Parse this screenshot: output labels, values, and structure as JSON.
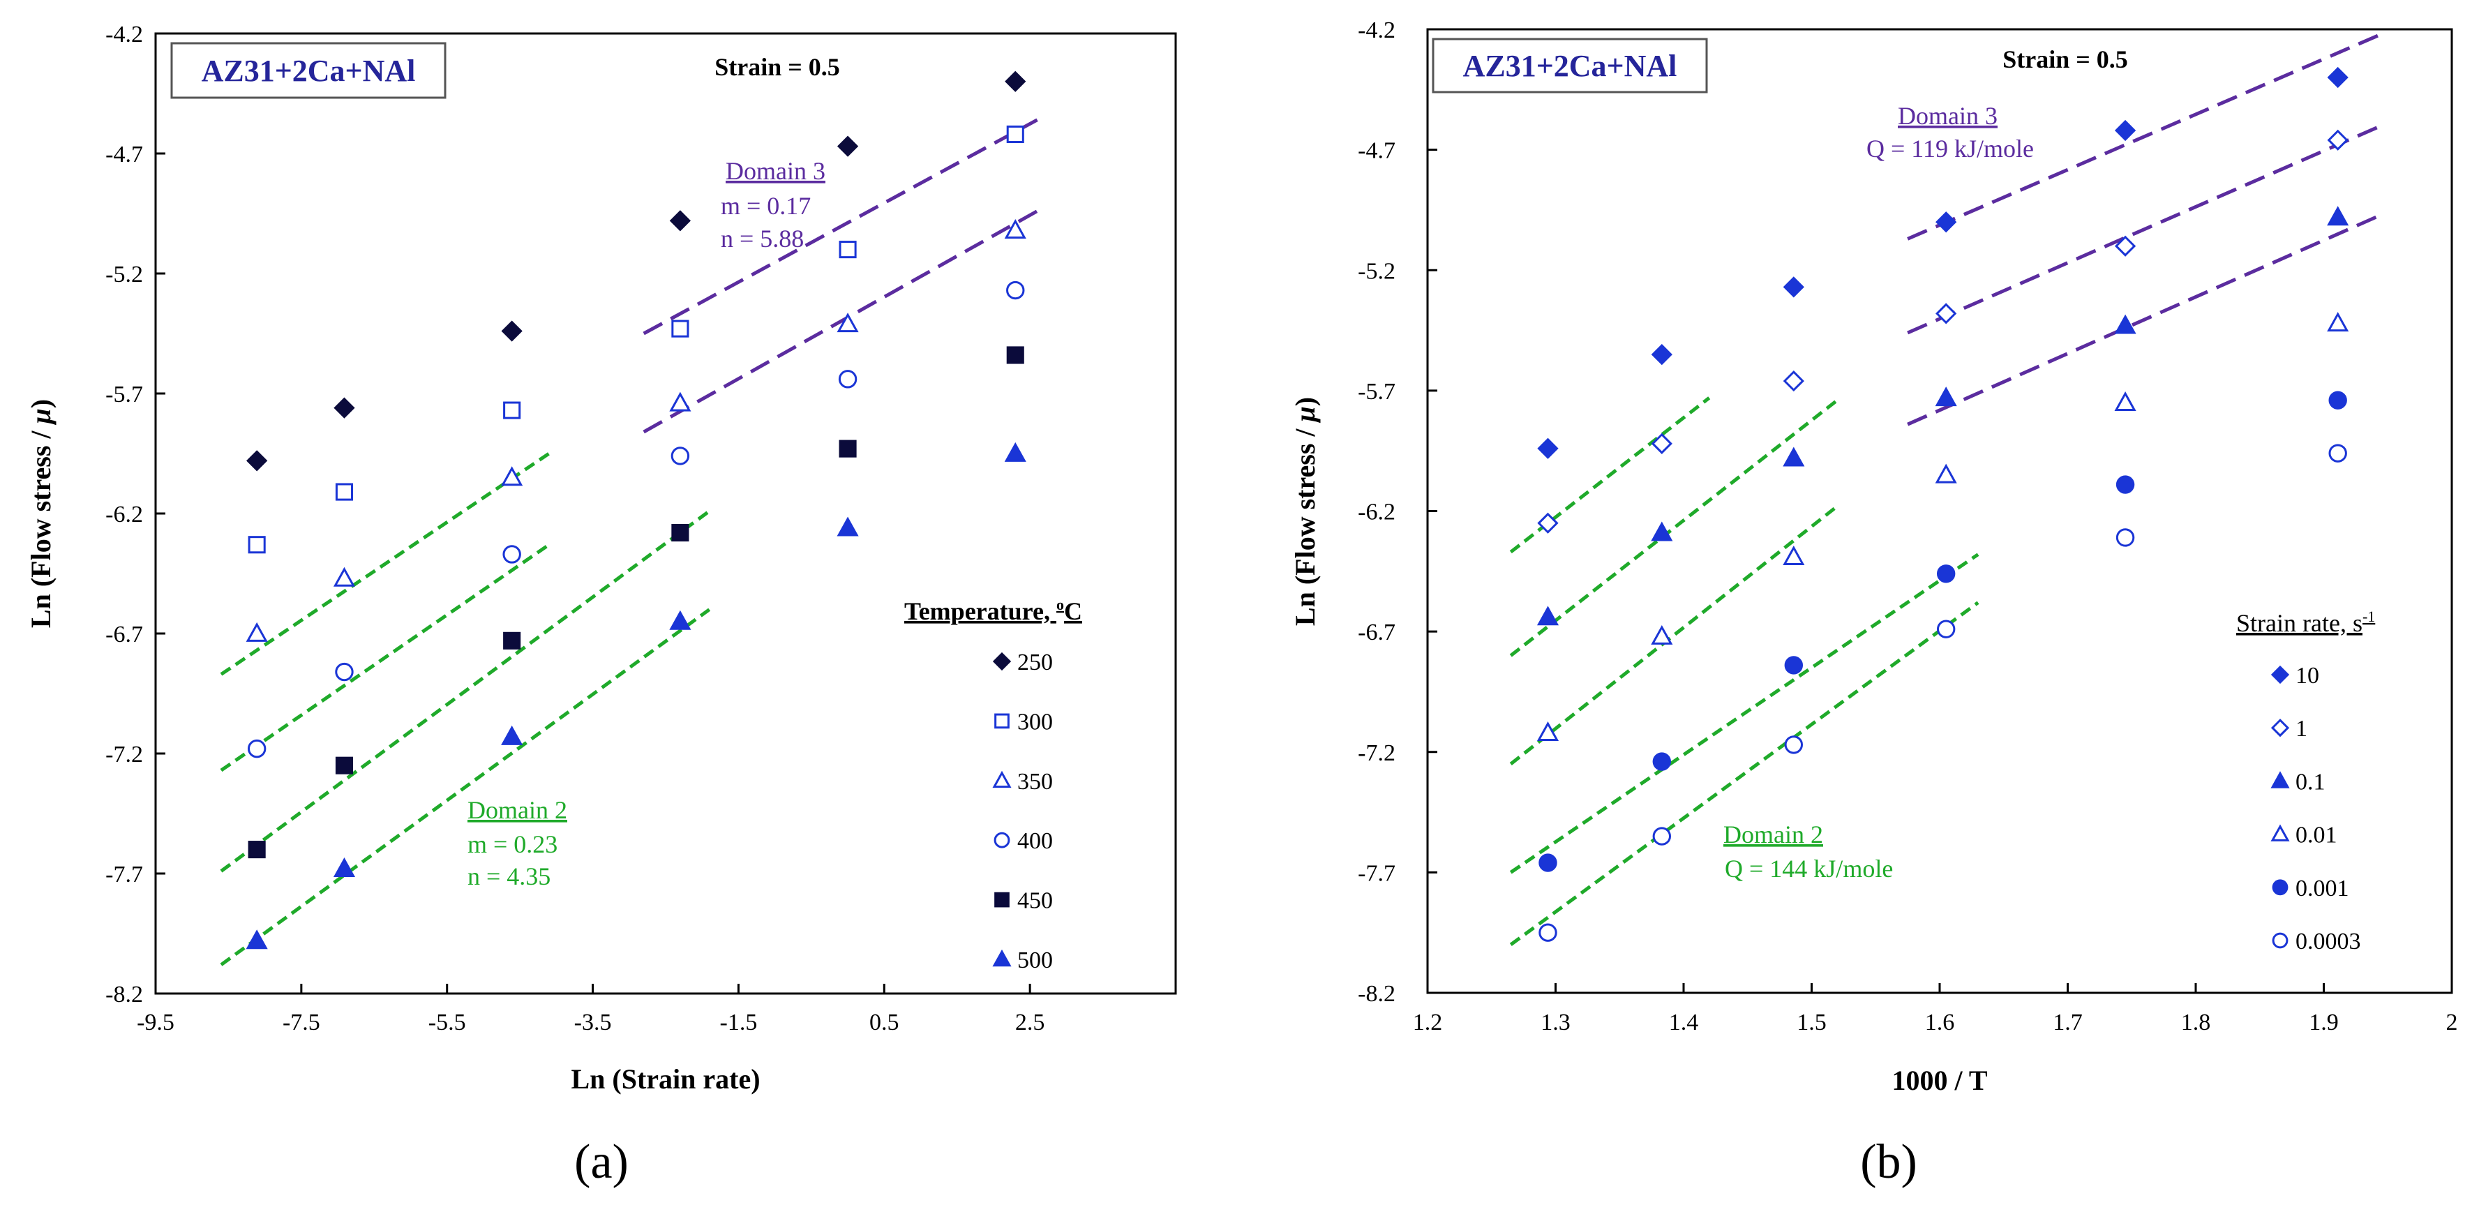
{
  "figure": {
    "panel_labels": [
      "(a)",
      "(b)"
    ]
  },
  "colors": {
    "marker_dark": "#0b0b3b",
    "marker_blue": "#1a35d6",
    "domain3": "#5b2c9f",
    "domain2": "#1faa2a",
    "title_box_text": "#25259a",
    "axis": "#000000"
  },
  "chart_data": [
    {
      "type": "scatter",
      "panel": "(a)",
      "title_box": "AZ31+2Ca+NAl",
      "subtitle": "Strain = 0.5",
      "xlabel": "Ln (Strain rate)",
      "ylabel_main": "Ln (Flow stress / ",
      "ylabel_mu": "μ",
      "ylabel_end": ")",
      "xlim": [
        -9.5,
        4.5
      ],
      "ylim": [
        -8.2,
        -4.2
      ],
      "xticks": [
        "-9.5",
        "-7.5",
        "-5.5",
        "-3.5",
        "-1.5",
        "0.5",
        "2.5"
      ],
      "xtick_values": [
        -9.5,
        -7.5,
        -5.5,
        -3.5,
        -1.5,
        0.5,
        2.5
      ],
      "yticks": [
        "-4.2",
        "-4.7",
        "-5.2",
        "-5.7",
        "-6.2",
        "-6.7",
        "-7.2",
        "-7.7",
        "-8.2"
      ],
      "ytick_values": [
        -4.2,
        -4.7,
        -5.2,
        -5.7,
        -6.2,
        -6.7,
        -7.2,
        -7.7,
        -8.2
      ],
      "x": [
        -8.11,
        -6.91,
        -4.61,
        -2.3,
        0.0,
        2.3
      ],
      "legend_title": "Temperature, ",
      "legend_title_sup": "o",
      "legend_title_end": "C",
      "series": [
        {
          "name": "250",
          "marker": "diamond",
          "filled": true,
          "color": "#0b0b3b",
          "values": [
            -5.98,
            -5.76,
            -5.44,
            -4.98,
            -4.67,
            -4.4
          ]
        },
        {
          "name": "300",
          "marker": "square",
          "filled": false,
          "color": "#1a35d6",
          "values": [
            -6.33,
            -6.11,
            -5.77,
            -5.43,
            -5.1,
            -4.62
          ]
        },
        {
          "name": "350",
          "marker": "triangle",
          "filled": false,
          "color": "#1a35d6",
          "values": [
            -6.7,
            -6.47,
            -6.05,
            -5.74,
            -5.41,
            -5.02
          ]
        },
        {
          "name": "400",
          "marker": "circle",
          "filled": false,
          "color": "#1a35d6",
          "values": [
            -7.18,
            -6.86,
            -6.37,
            -5.96,
            -5.64,
            -5.27
          ]
        },
        {
          "name": "450",
          "marker": "square",
          "filled": true,
          "color": "#0b0b3b",
          "values": [
            -7.6,
            -7.25,
            -6.73,
            -6.28,
            -5.93,
            -5.54
          ]
        },
        {
          "name": "500",
          "marker": "triangle",
          "filled": true,
          "color": "#1a35d6",
          "values": [
            -7.98,
            -7.68,
            -7.13,
            -6.65,
            -6.26,
            -5.95
          ]
        }
      ],
      "fit_lines": [
        {
          "domain": "Domain 3",
          "x": [
            -2.8,
            2.6
          ],
          "y": [
            -5.45,
            -4.56
          ]
        },
        {
          "domain": "Domain 3",
          "x": [
            -2.8,
            2.6
          ],
          "y": [
            -5.86,
            -4.94
          ]
        },
        {
          "domain": "Domain 2",
          "x": [
            -8.6,
            -4.1
          ],
          "y": [
            -6.87,
            -5.95
          ]
        },
        {
          "domain": "Domain 2",
          "x": [
            -8.6,
            -4.1
          ],
          "y": [
            -7.27,
            -6.33
          ]
        },
        {
          "domain": "Domain 2",
          "x": [
            -8.6,
            -1.9
          ],
          "y": [
            -7.69,
            -6.19
          ]
        },
        {
          "domain": "Domain 2",
          "x": [
            -8.6,
            -1.9
          ],
          "y": [
            -8.08,
            -6.6
          ]
        }
      ],
      "annotations": {
        "domain3": {
          "title": "Domain 3",
          "lines": [
            "m = 0.17",
            "n = 5.88"
          ]
        },
        "domain2": {
          "title": "Domain 2",
          "lines": [
            "m = 0.23",
            "n = 4.35"
          ]
        }
      }
    },
    {
      "type": "scatter",
      "panel": "(b)",
      "title_box": "AZ31+2Ca+NAl",
      "subtitle": "Strain = 0.5",
      "xlabel": "1000 / T",
      "ylabel_main": "Ln (Flow stress / ",
      "ylabel_mu": "μ",
      "ylabel_end": ")",
      "xlim": [
        1.2,
        2.0
      ],
      "ylim": [
        -8.2,
        -4.2
      ],
      "xticks": [
        "1.2",
        "1.3",
        "1.4",
        "1.5",
        "1.6",
        "1.7",
        "1.8",
        "1.9",
        "2"
      ],
      "xtick_values": [
        1.2,
        1.3,
        1.4,
        1.5,
        1.6,
        1.7,
        1.8,
        1.9,
        2.0
      ],
      "yticks": [
        "-4.2",
        "-4.7",
        "-5.2",
        "-5.7",
        "-6.2",
        "-6.7",
        "-7.2",
        "-7.7",
        "-8.2"
      ],
      "ytick_values": [
        -4.2,
        -4.7,
        -5.2,
        -5.7,
        -6.2,
        -6.7,
        -7.2,
        -7.7,
        -8.2
      ],
      "x": [
        1.294,
        1.383,
        1.486,
        1.605,
        1.745,
        1.911
      ],
      "legend_title": "Strain rate, s",
      "legend_title_sup": "-1",
      "legend_title_end": "",
      "series": [
        {
          "name": "10",
          "marker": "diamond",
          "filled": true,
          "color": "#1a35d6",
          "values": [
            -5.94,
            -5.55,
            -5.27,
            -5.0,
            -4.62,
            -4.4
          ]
        },
        {
          "name": "1",
          "marker": "diamond",
          "filled": false,
          "color": "#1a35d6",
          "values": [
            -6.25,
            -5.92,
            -5.66,
            -5.38,
            -5.1,
            -4.66
          ]
        },
        {
          "name": "0.1",
          "marker": "triangle",
          "filled": true,
          "color": "#1a35d6",
          "values": [
            -6.64,
            -6.29,
            -5.98,
            -5.73,
            -5.43,
            -4.98
          ]
        },
        {
          "name": "0.01",
          "marker": "triangle",
          "filled": false,
          "color": "#1a35d6",
          "values": [
            -7.12,
            -6.72,
            -6.39,
            -6.05,
            -5.75,
            -5.42
          ]
        },
        {
          "name": "0.001",
          "marker": "circle",
          "filled": true,
          "color": "#1a35d6",
          "values": [
            -7.66,
            -7.24,
            -6.84,
            -6.46,
            -6.09,
            -5.74
          ]
        },
        {
          "name": "0.0003",
          "marker": "circle",
          "filled": false,
          "color": "#1a35d6",
          "values": [
            -7.95,
            -7.55,
            -7.17,
            -6.69,
            -6.31,
            -5.96
          ]
        }
      ],
      "fit_lines": [
        {
          "domain": "Domain 3",
          "x": [
            1.575,
            1.945
          ],
          "y": [
            -5.07,
            -4.22
          ]
        },
        {
          "domain": "Domain 3",
          "x": [
            1.575,
            1.945
          ],
          "y": [
            -5.46,
            -4.6
          ]
        },
        {
          "domain": "Domain 3",
          "x": [
            1.575,
            1.945
          ],
          "y": [
            -5.84,
            -4.97
          ]
        },
        {
          "domain": "Domain 2",
          "x": [
            1.265,
            1.42
          ],
          "y": [
            -6.37,
            -5.73
          ]
        },
        {
          "domain": "Domain 2",
          "x": [
            1.265,
            1.52
          ],
          "y": [
            -6.8,
            -5.74
          ]
        },
        {
          "domain": "Domain 2",
          "x": [
            1.265,
            1.52
          ],
          "y": [
            -7.25,
            -6.18
          ]
        },
        {
          "domain": "Domain 2",
          "x": [
            1.265,
            1.63
          ],
          "y": [
            -7.7,
            -6.38
          ]
        },
        {
          "domain": "Domain 2",
          "x": [
            1.265,
            1.63
          ],
          "y": [
            -8.0,
            -6.58
          ]
        }
      ],
      "annotations": {
        "domain3": {
          "title": "Domain 3",
          "lines": [
            "Q = 119 kJ/mole"
          ]
        },
        "domain2": {
          "title": "Domain 2",
          "lines": [
            "Q = 144 kJ/mole"
          ]
        }
      }
    }
  ]
}
